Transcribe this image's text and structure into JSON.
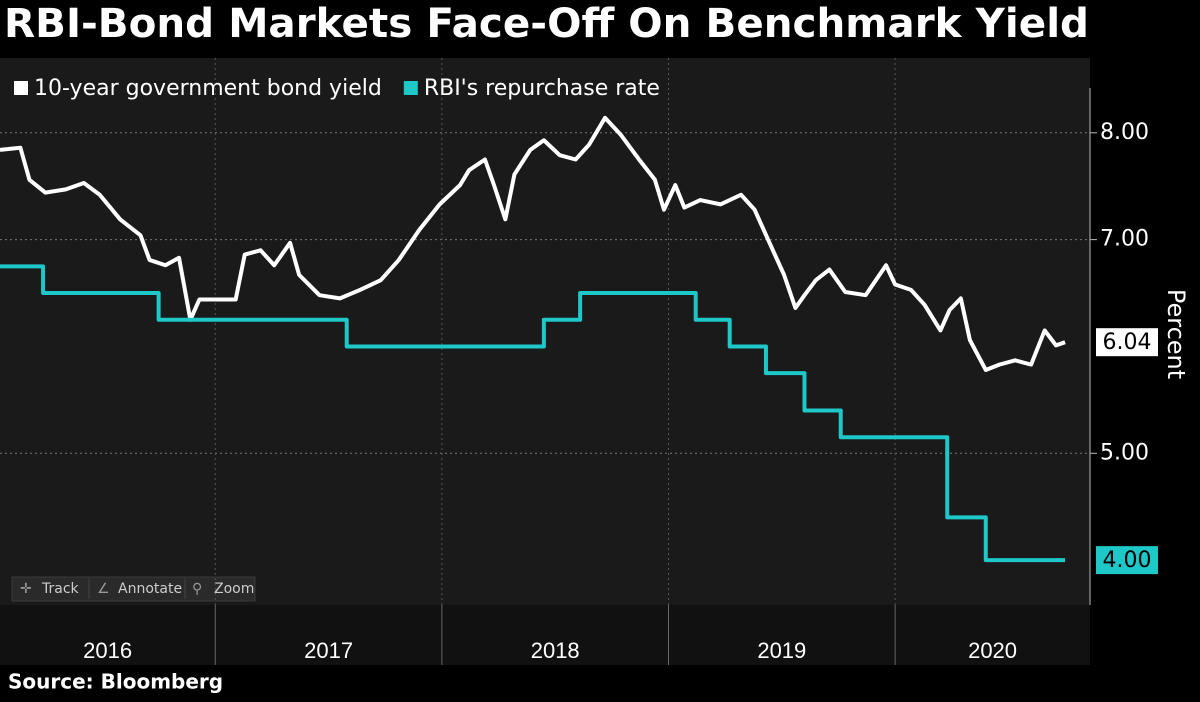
{
  "chart_data": {
    "type": "line",
    "title": "RBI-Bond Markets Face-Off On Benchmark Yield",
    "y_axis_label": "Percent",
    "source": "Source: Bloomberg",
    "legend": "top-left",
    "grid": true,
    "xlim": [
      2016.05,
      2020.86
    ],
    "xticks": [
      2016,
      2017,
      2018,
      2019,
      2020
    ],
    "ylim": [
      3.58,
      8.7
    ],
    "yticks": [
      {
        "value": 5,
        "label": "5.00"
      },
      {
        "value": 7,
        "label": "7.00"
      },
      {
        "value": 8,
        "label": "8.00"
      }
    ],
    "series": [
      {
        "name": "10-year government bond yield",
        "color": "#ffffff",
        "step": false,
        "x": [
          2016.05,
          2016.14,
          2016.18,
          2016.25,
          2016.34,
          2016.42,
          2016.49,
          2016.58,
          2016.67,
          2016.71,
          2016.78,
          2016.84,
          2016.89,
          2016.93,
          2017.0,
          2017.09,
          2017.13,
          2017.2,
          2017.26,
          2017.33,
          2017.37,
          2017.46,
          2017.55,
          2017.64,
          2017.73,
          2017.81,
          2017.9,
          2017.99,
          2018.08,
          2018.12,
          2018.19,
          2018.23,
          2018.28,
          2018.32,
          2018.39,
          2018.45,
          2018.52,
          2018.59,
          2018.65,
          2018.72,
          2018.79,
          2018.87,
          2018.94,
          2018.98,
          2019.03,
          2019.07,
          2019.14,
          2019.23,
          2019.32,
          2019.38,
          2019.45,
          2019.51,
          2019.56,
          2019.6,
          2019.65,
          2019.71,
          2019.78,
          2019.87,
          2019.96,
          2020.0,
          2020.07,
          2020.13,
          2020.2,
          2020.24,
          2020.29,
          2020.33,
          2020.4,
          2020.46,
          2020.53,
          2020.6,
          2020.66,
          2020.71,
          2020.75
        ],
        "values": [
          7.84,
          7.86,
          7.56,
          7.44,
          7.47,
          7.53,
          7.42,
          7.19,
          7.04,
          6.81,
          6.76,
          6.83,
          6.25,
          6.44,
          6.44,
          6.44,
          6.86,
          6.9,
          6.76,
          6.97,
          6.67,
          6.48,
          6.45,
          6.53,
          6.62,
          6.81,
          7.09,
          7.33,
          7.51,
          7.65,
          7.75,
          7.51,
          7.19,
          7.61,
          7.84,
          7.93,
          7.79,
          7.75,
          7.89,
          8.14,
          7.98,
          7.75,
          7.56,
          7.28,
          7.51,
          7.3,
          7.37,
          7.33,
          7.42,
          7.28,
          6.95,
          6.67,
          6.36,
          6.48,
          6.62,
          6.72,
          6.51,
          6.48,
          6.76,
          6.58,
          6.53,
          6.39,
          6.15,
          6.34,
          6.45,
          6.06,
          5.78,
          5.83,
          5.87,
          5.83,
          6.15,
          6.01,
          6.04
        ],
        "end_label": "6.04"
      },
      {
        "name": "RBI's repurchase rate",
        "color": "#1ec8c8",
        "step": true,
        "x": [
          2016.05,
          2016.24,
          2016.75,
          2017.58,
          2018.45,
          2018.61,
          2019.12,
          2019.27,
          2019.43,
          2019.6,
          2019.76,
          2020.23,
          2020.4,
          2020.75
        ],
        "values": [
          6.75,
          6.5,
          6.25,
          6.0,
          6.25,
          6.5,
          6.25,
          6.0,
          5.75,
          5.4,
          5.15,
          4.4,
          4.0,
          4.0
        ],
        "end_label": "4.00"
      }
    ]
  },
  "toolbar": [
    "Track",
    "Annotate",
    "Zoom"
  ]
}
